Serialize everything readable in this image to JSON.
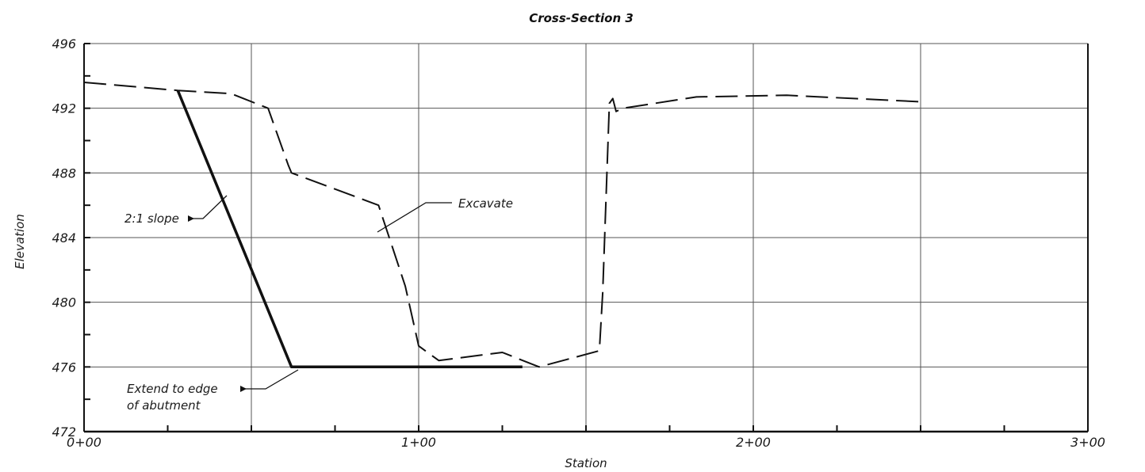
{
  "chart_data": {
    "type": "line",
    "title": "Cross-Section 3",
    "xlabel": "Station",
    "ylabel": "Elevation",
    "xlim": [
      0,
      300
    ],
    "ylim": [
      472,
      496
    ],
    "x_tick_values": [
      0,
      100,
      200,
      300
    ],
    "x_tick_labels": [
      "0+00",
      "1+00",
      "2+00",
      "3+00"
    ],
    "y_tick_values": [
      472,
      476,
      480,
      484,
      488,
      492,
      496
    ],
    "y_tick_labels": [
      "472",
      "476",
      "480",
      "484",
      "488",
      "492",
      "496"
    ],
    "grid": true,
    "series": [
      {
        "style": "dashed",
        "x": [
          0,
          28,
          44,
          55,
          61,
          62,
          88,
          96,
          100,
          106,
          125,
          136,
          154,
          155,
          157,
          158,
          159,
          161,
          183,
          210,
          250
        ],
        "y": [
          493.6,
          493.1,
          492.9,
          492,
          488.5,
          488,
          486,
          481,
          477.3,
          476.4,
          476.9,
          476.0,
          477.0,
          480.6,
          492.3,
          492.6,
          491.8,
          492.0,
          492.7,
          492.8,
          492.4
        ]
      },
      {
        "style": "solid",
        "x": [
          28,
          62,
          131
        ],
        "y": [
          493.1,
          476,
          476
        ]
      }
    ],
    "annotations": [
      {
        "text": "Excavate",
        "x": 111,
        "y": 487
      },
      {
        "text": "2:1 slope",
        "x": 10,
        "y": 485.5
      },
      {
        "text": "Extend to edge",
        "x": 10,
        "y": 474.9
      },
      {
        "text": "of abutment",
        "x": 10,
        "y": 473.1
      }
    ]
  }
}
